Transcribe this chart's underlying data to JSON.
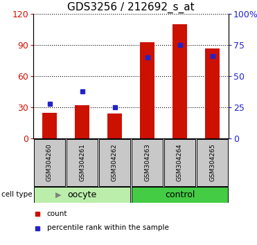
{
  "title": "GDS3256 / 212692_s_at",
  "categories": [
    "GSM304260",
    "GSM304261",
    "GSM304262",
    "GSM304263",
    "GSM304264",
    "GSM304265"
  ],
  "bar_values": [
    25,
    32,
    24,
    93,
    110,
    87
  ],
  "percentile_values": [
    28,
    38,
    25,
    65,
    75,
    66
  ],
  "bar_color": "#cc1100",
  "dot_color": "#2222cc",
  "left_ylim": [
    0,
    120
  ],
  "left_yticks": [
    0,
    30,
    60,
    90,
    120
  ],
  "right_ylim": [
    0,
    100
  ],
  "right_yticks": [
    0,
    25,
    50,
    75,
    100
  ],
  "right_yticklabels": [
    "0",
    "25",
    "50",
    "75",
    "100%"
  ],
  "groups": [
    {
      "label": "oocyte",
      "indices": [
        0,
        1,
        2
      ],
      "color": "#bbeeaa"
    },
    {
      "label": "control",
      "indices": [
        3,
        4,
        5
      ],
      "color": "#44cc44"
    }
  ],
  "legend_items": [
    {
      "label": "count",
      "color": "#cc1100"
    },
    {
      "label": "percentile rank within the sample",
      "color": "#2222cc"
    }
  ],
  "xlabel_area_color": "#c8c8c8",
  "title_fontsize": 11,
  "axis_fontsize": 9,
  "label_fontsize": 7
}
